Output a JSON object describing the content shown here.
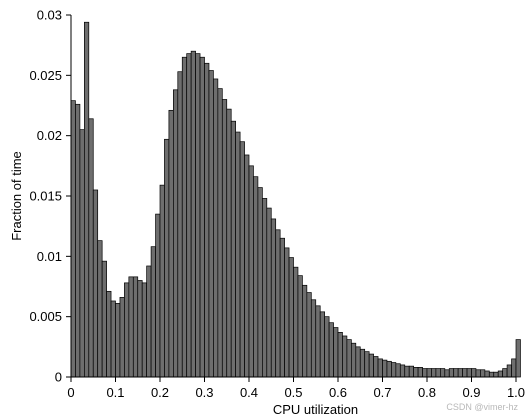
{
  "chart_data": {
    "type": "bar",
    "subtype": "histogram",
    "xlabel": "CPU utilization",
    "ylabel": "Fraction of time",
    "xlim": [
      0,
      1
    ],
    "ylim": [
      0,
      0.03
    ],
    "bin_width": 0.01,
    "x_ticks": [
      0,
      0.1,
      0.2,
      0.3,
      0.4,
      0.5,
      0.6,
      0.7,
      0.8,
      0.9,
      1.0
    ],
    "x_tick_labels": [
      "0",
      "0.1",
      "0.2",
      "0.3",
      "0.4",
      "0.5",
      "0.6",
      "0.7",
      "0.8",
      "0.9",
      "1.0"
    ],
    "y_ticks": [
      0,
      0.005,
      0.01,
      0.015,
      0.02,
      0.025,
      0.03
    ],
    "y_tick_labels": [
      "0",
      "0.005",
      "0.01",
      "0.015",
      "0.02",
      "0.025",
      "0.03"
    ],
    "grid": false,
    "bar_color": "#6e6e6e",
    "bar_edge_color": "#000000",
    "values": [
      0.0229,
      0.0226,
      0.0205,
      0.0294,
      0.0214,
      0.0155,
      0.0113,
      0.0096,
      0.0071,
      0.0063,
      0.0061,
      0.0066,
      0.0078,
      0.0083,
      0.0083,
      0.008,
      0.0078,
      0.0092,
      0.0108,
      0.0135,
      0.0159,
      0.0197,
      0.0221,
      0.0238,
      0.0253,
      0.0265,
      0.0268,
      0.027,
      0.0268,
      0.0265,
      0.026,
      0.0254,
      0.0247,
      0.0239,
      0.023,
      0.0222,
      0.0212,
      0.0203,
      0.0195,
      0.0184,
      0.0175,
      0.0166,
      0.0157,
      0.0148,
      0.014,
      0.0131,
      0.0122,
      0.0115,
      0.0107,
      0.0099,
      0.0091,
      0.0084,
      0.0076,
      0.007,
      0.0064,
      0.0059,
      0.0054,
      0.005,
      0.0045,
      0.0041,
      0.0037,
      0.0034,
      0.0031,
      0.0028,
      0.0025,
      0.0023,
      0.0021,
      0.0019,
      0.0017,
      0.0015,
      0.0014,
      0.0013,
      0.0012,
      0.0011,
      0.001,
      0.0009,
      0.0009,
      0.0008,
      0.0008,
      0.0007,
      0.0007,
      0.0007,
      0.0007,
      0.0007,
      0.0006,
      0.0007,
      0.0007,
      0.0007,
      0.0007,
      0.0007,
      0.0007,
      0.0006,
      0.0006,
      0.0005,
      0.0004,
      0.0004,
      0.0005,
      0.0007,
      0.001,
      0.0015,
      0.0031
    ]
  },
  "watermark": "CSDN @vimer-hz"
}
